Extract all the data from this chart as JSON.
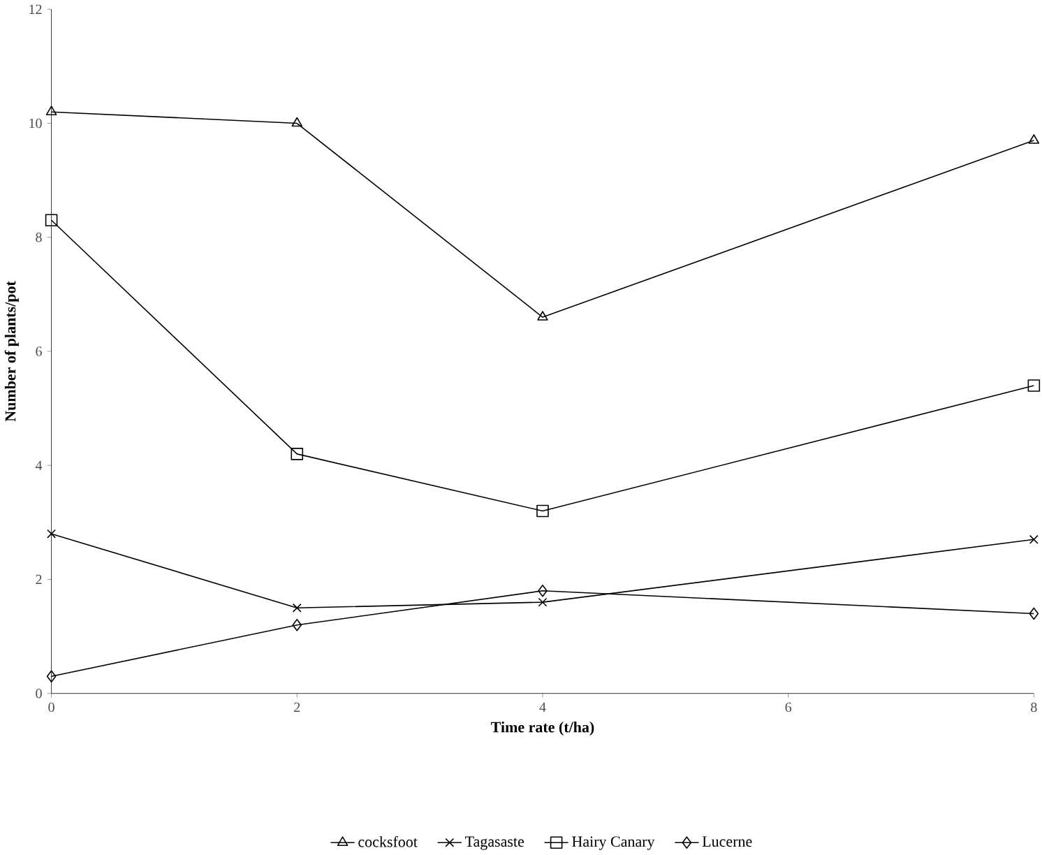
{
  "chart_data": {
    "type": "line",
    "xlabel": "Time rate (t/ha)",
    "ylabel": "Number of plants/pot",
    "x": [
      0,
      2,
      4,
      8
    ],
    "series": [
      {
        "name": "cocksfoot",
        "color": "#000000",
        "marker": "triangle",
        "values": [
          10.2,
          10.0,
          6.6,
          9.7
        ]
      },
      {
        "name": "Tagasaste",
        "color": "#000000",
        "marker": "cross",
        "values": [
          2.8,
          1.5,
          1.6,
          2.7
        ]
      },
      {
        "name": "Hairy Canary",
        "color": "#000000",
        "marker": "square",
        "values": [
          8.3,
          4.2,
          3.2,
          5.4
        ]
      },
      {
        "name": "Lucerne",
        "color": "#000000",
        "marker": "diamond",
        "values": [
          0.3,
          1.2,
          1.8,
          1.4
        ]
      }
    ],
    "xlim": [
      0,
      8
    ],
    "xticks": [
      0,
      2,
      4,
      6,
      8
    ],
    "ylim": [
      0,
      12
    ],
    "yticks": [
      0,
      2,
      4,
      6,
      8,
      10,
      12
    ],
    "grid": false,
    "legend": "bottom",
    "line_style": "solid"
  }
}
